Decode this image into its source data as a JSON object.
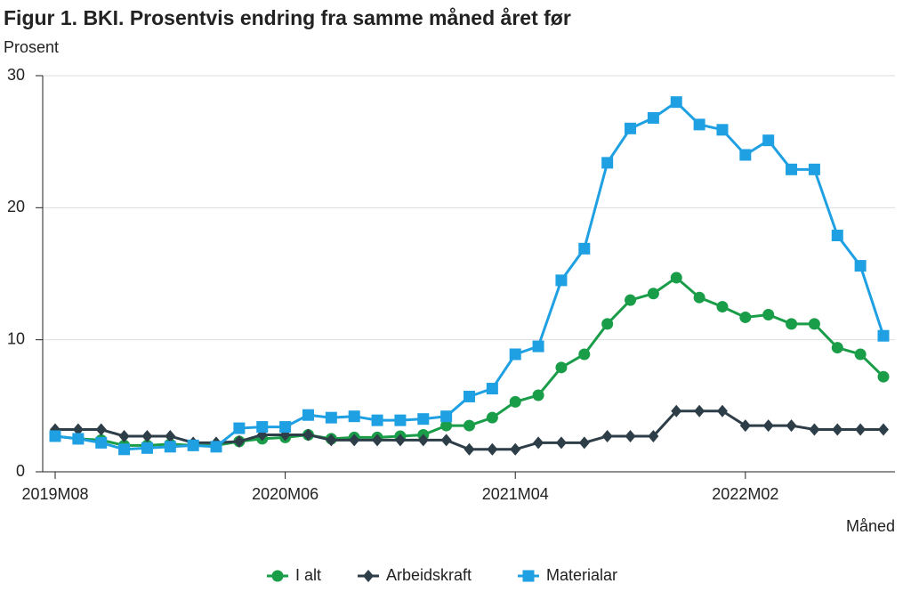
{
  "chart_data": {
    "type": "line",
    "title": "Figur 1.  BKI. Prosentvis endring fra samme måned året før",
    "y_label": "Prosent",
    "x_label": "Måned",
    "categories": [
      "2019M08",
      null,
      null,
      null,
      null,
      null,
      null,
      null,
      null,
      null,
      "2020M06",
      null,
      null,
      null,
      null,
      null,
      null,
      null,
      null,
      null,
      "2021M04",
      null,
      null,
      null,
      null,
      null,
      null,
      null,
      null,
      null,
      "2022M02",
      null,
      null,
      null,
      null,
      null,
      null
    ],
    "series": [
      {
        "name": "I alt",
        "color": "#1a9d49",
        "marker": "circle",
        "values": [
          2.7,
          2.5,
          2.4,
          2.0,
          2.0,
          2.1,
          2.0,
          2.0,
          2.3,
          2.5,
          2.6,
          2.8,
          2.5,
          2.6,
          2.6,
          2.7,
          2.8,
          3.5,
          3.5,
          4.1,
          5.3,
          5.8,
          7.9,
          8.9,
          11.2,
          13.0,
          13.5,
          14.7,
          13.2,
          12.5,
          11.7,
          11.9,
          11.2,
          11.2,
          9.4,
          8.9,
          7.2
        ]
      },
      {
        "name": "Arbeidskraft",
        "color": "#2d3e48",
        "marker": "diamond",
        "values": [
          3.2,
          3.2,
          3.2,
          2.7,
          2.7,
          2.7,
          2.2,
          2.2,
          2.3,
          2.8,
          2.8,
          2.8,
          2.4,
          2.4,
          2.4,
          2.4,
          2.4,
          2.4,
          1.7,
          1.7,
          1.7,
          2.2,
          2.2,
          2.2,
          2.7,
          2.7,
          2.7,
          4.6,
          4.6,
          4.6,
          3.5,
          3.5,
          3.5,
          3.2,
          3.2,
          3.2,
          3.2
        ]
      },
      {
        "name": "Materialar",
        "color": "#1fa0e3",
        "marker": "square",
        "values": [
          2.7,
          2.5,
          2.2,
          1.7,
          1.8,
          1.9,
          2.0,
          1.9,
          3.3,
          3.4,
          3.4,
          4.3,
          4.1,
          4.2,
          3.9,
          3.9,
          4.0,
          4.2,
          5.7,
          6.3,
          8.9,
          9.5,
          14.5,
          16.9,
          23.4,
          26.0,
          26.8,
          28.0,
          26.3,
          25.9,
          24.0,
          25.1,
          22.9,
          22.9,
          17.9,
          15.6,
          10.3
        ]
      }
    ],
    "ylim": [
      0,
      30
    ],
    "yticks": [
      0,
      10,
      20,
      30
    ],
    "grid": true,
    "legend": "bottom"
  }
}
